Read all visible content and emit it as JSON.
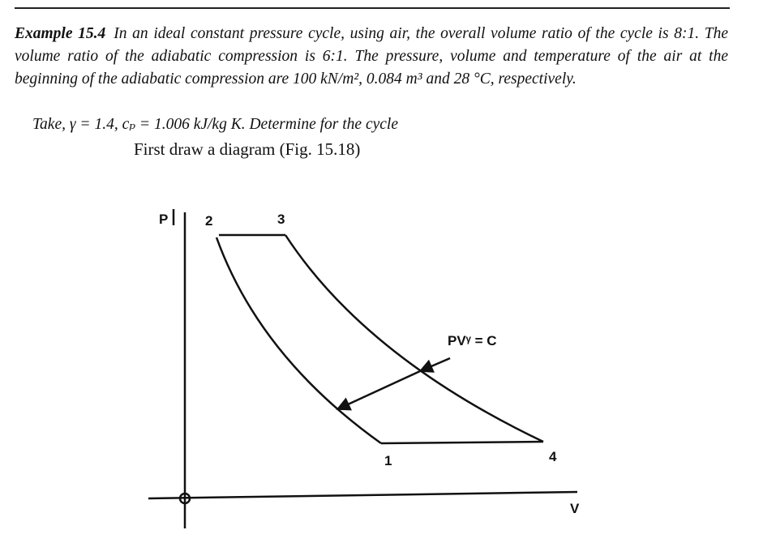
{
  "problem": {
    "label": "Example 15.4",
    "text": "In an ideal constant pressure cycle, using air, the overall volume ratio of the cycle is 8:1. The volume ratio of the adiabatic compression is 6:1. The pressure, volume and temperature of the air at the beginning of the adiabatic compression are 100 kN/m², 0.084 m³ and 28 °C, respectively."
  },
  "given": "Take, γ = 1.4, cₚ = 1.006 kJ/kg K. Determine for the cycle",
  "instruction": "First draw a diagram (Fig. 15.18)",
  "figure": {
    "axis_labels": {
      "y": "P",
      "x": "V"
    },
    "points": [
      "1",
      "2",
      "3",
      "4"
    ],
    "annotation": "PVᵞ = C"
  }
}
